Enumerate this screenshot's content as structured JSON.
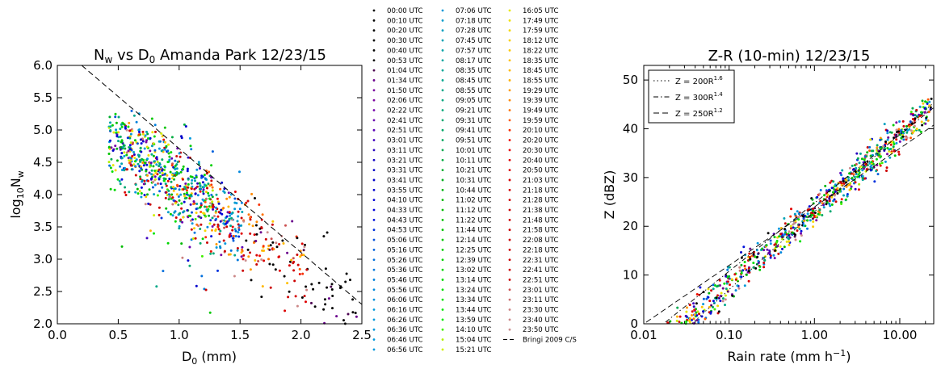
{
  "chart_data": [
    {
      "type": "scatter",
      "title_parts": [
        "N",
        "w",
        " vs D",
        "0",
        " Amanda Park 12/23/15"
      ],
      "xlabel_parts": [
        "D",
        "0",
        " (mm)"
      ],
      "ylabel_parts": [
        "log",
        "10",
        "N",
        "w"
      ],
      "xlim": [
        0.0,
        2.5
      ],
      "ylim": [
        2.0,
        6.0
      ],
      "xticks": [
        "0.0",
        "0.5",
        "1.0",
        "1.5",
        "2.0",
        "2.5"
      ],
      "yticks": [
        "2.0",
        "2.5",
        "3.0",
        "3.5",
        "4.0",
        "4.5",
        "5.0",
        "5.5",
        "6.0"
      ],
      "reference_line": {
        "name": "Bringi 2009 C/S",
        "x": [
          0.2,
          2.5
        ],
        "y": [
          6.0,
          2.3
        ]
      },
      "point_count": 930,
      "grid": false
    },
    {
      "type": "scatter",
      "title": "Z-R (10-min) 12/23/15",
      "xlabel": "Rain rate (mm h",
      "xlabel_sup": "−1",
      "xlabel_end": ")",
      "ylabel": "Z (dBZ)",
      "xscale": "log",
      "xlim": [
        0.01,
        25
      ],
      "ylim": [
        0,
        53
      ],
      "xticks": [
        "0.01",
        "0.10",
        "1.00",
        "10.00"
      ],
      "yticks": [
        "0",
        "10",
        "20",
        "30",
        "40",
        "50"
      ],
      "legend_position": "upper-left",
      "relations": [
        {
          "label": "Z = 200R",
          "sup": "1.6",
          "a": 200,
          "b": 1.6,
          "dash": "1.5,3"
        },
        {
          "label": "Z = 300R",
          "sup": "1.4",
          "a": 300,
          "b": 1.4,
          "dash": "6,3,1.5,3"
        },
        {
          "label": "Z = 250R",
          "sup": "1.2",
          "a": 250,
          "b": 1.2,
          "dash": "7,4"
        }
      ],
      "point_count": 800,
      "grid": false
    }
  ],
  "legend": {
    "entries": [
      {
        "label": "00:00 UTC",
        "color": "#000000"
      },
      {
        "label": "00:10 UTC",
        "color": "#000000"
      },
      {
        "label": "00:20 UTC",
        "color": "#000000"
      },
      {
        "label": "00:30 UTC",
        "color": "#000000"
      },
      {
        "label": "00:40 UTC",
        "color": "#000000"
      },
      {
        "label": "00:53 UTC",
        "color": "#000000"
      },
      {
        "label": "01:04 UTC",
        "color": "#4b0050"
      },
      {
        "label": "01:34 UTC",
        "color": "#6a008c"
      },
      {
        "label": "01:50 UTC",
        "color": "#7a00a0"
      },
      {
        "label": "02:06 UTC",
        "color": "#7a00a0"
      },
      {
        "label": "02:22 UTC",
        "color": "#7300aa"
      },
      {
        "label": "02:41 UTC",
        "color": "#6a00b0"
      },
      {
        "label": "02:51 UTC",
        "color": "#5a00b8"
      },
      {
        "label": "03:01 UTC",
        "color": "#4000c0"
      },
      {
        "label": "03:11 UTC",
        "color": "#2800c0"
      },
      {
        "label": "03:21 UTC",
        "color": "#1000c4"
      },
      {
        "label": "03:31 UTC",
        "color": "#0000c8"
      },
      {
        "label": "03:41 UTC",
        "color": "#0000cc"
      },
      {
        "label": "03:55 UTC",
        "color": "#0000d0"
      },
      {
        "label": "04:10 UTC",
        "color": "#0000d8"
      },
      {
        "label": "04:33 UTC",
        "color": "#0000dd"
      },
      {
        "label": "04:43 UTC",
        "color": "#0010dd"
      },
      {
        "label": "04:53 UTC",
        "color": "#0030dd"
      },
      {
        "label": "05:06 UTC",
        "color": "#0050dd"
      },
      {
        "label": "05:16 UTC",
        "color": "#0060dd"
      },
      {
        "label": "05:26 UTC",
        "color": "#0070dd"
      },
      {
        "label": "05:36 UTC",
        "color": "#0078dd"
      },
      {
        "label": "05:46 UTC",
        "color": "#0080dd"
      },
      {
        "label": "05:56 UTC",
        "color": "#0088dd"
      },
      {
        "label": "06:06 UTC",
        "color": "#0090dd"
      },
      {
        "label": "06:16 UTC",
        "color": "#0098dd"
      },
      {
        "label": "06:26 UTC",
        "color": "#0098dd"
      },
      {
        "label": "06:36 UTC",
        "color": "#0098dd"
      },
      {
        "label": "06:46 UTC",
        "color": "#0098dd"
      },
      {
        "label": "06:56 UTC",
        "color": "#0098dd"
      },
      {
        "label": "07:06 UTC",
        "color": "#0098d8"
      },
      {
        "label": "07:18 UTC",
        "color": "#009ccc"
      },
      {
        "label": "07:28 UTC",
        "color": "#00a0c0"
      },
      {
        "label": "07:45 UTC",
        "color": "#00a2b4"
      },
      {
        "label": "07:57 UTC",
        "color": "#00a4a8"
      },
      {
        "label": "08:17 UTC",
        "color": "#00a6a0"
      },
      {
        "label": "08:35 UTC",
        "color": "#00a898"
      },
      {
        "label": "08:45 UTC",
        "color": "#00a890"
      },
      {
        "label": "08:55 UTC",
        "color": "#00a888"
      },
      {
        "label": "09:05 UTC",
        "color": "#00a880"
      },
      {
        "label": "09:21 UTC",
        "color": "#00a878"
      },
      {
        "label": "09:31 UTC",
        "color": "#00a870"
      },
      {
        "label": "09:41 UTC",
        "color": "#00a868"
      },
      {
        "label": "09:51 UTC",
        "color": "#00a860"
      },
      {
        "label": "10:01 UTC",
        "color": "#00aa50"
      },
      {
        "label": "10:11 UTC",
        "color": "#00ac40"
      },
      {
        "label": "10:21 UTC",
        "color": "#00ae30"
      },
      {
        "label": "10:31 UTC",
        "color": "#00b020"
      },
      {
        "label": "10:44 UTC",
        "color": "#00b410"
      },
      {
        "label": "11:02 UTC",
        "color": "#00b800"
      },
      {
        "label": "11:12 UTC",
        "color": "#00bc00"
      },
      {
        "label": "11:22 UTC",
        "color": "#00c000"
      },
      {
        "label": "11:44 UTC",
        "color": "#00c400"
      },
      {
        "label": "12:14 UTC",
        "color": "#00c800"
      },
      {
        "label": "12:25 UTC",
        "color": "#00cc00"
      },
      {
        "label": "12:39 UTC",
        "color": "#00d000"
      },
      {
        "label": "13:02 UTC",
        "color": "#00d400"
      },
      {
        "label": "13:14 UTC",
        "color": "#00d800"
      },
      {
        "label": "13:24 UTC",
        "color": "#00dc00"
      },
      {
        "label": "13:34 UTC",
        "color": "#00e000"
      },
      {
        "label": "13:44 UTC",
        "color": "#00e400"
      },
      {
        "label": "13:59 UTC",
        "color": "#00e800"
      },
      {
        "label": "14:10 UTC",
        "color": "#40f000"
      },
      {
        "label": "15:04 UTC",
        "color": "#b0f000"
      },
      {
        "label": "15:21 UTC",
        "color": "#d0f000"
      },
      {
        "label": "16:05 UTC",
        "color": "#e8e800"
      },
      {
        "label": "17:49 UTC",
        "color": "#f0e000"
      },
      {
        "label": "17:59 UTC",
        "color": "#f4d800"
      },
      {
        "label": "18:12 UTC",
        "color": "#f8d000"
      },
      {
        "label": "18:22 UTC",
        "color": "#fcc800"
      },
      {
        "label": "18:35 UTC",
        "color": "#ffc000"
      },
      {
        "label": "18:45 UTC",
        "color": "#ffb800"
      },
      {
        "label": "18:55 UTC",
        "color": "#ffb000"
      },
      {
        "label": "19:29 UTC",
        "color": "#ff9a00"
      },
      {
        "label": "19:39 UTC",
        "color": "#ff8800"
      },
      {
        "label": "19:49 UTC",
        "color": "#ff7000"
      },
      {
        "label": "19:59 UTC",
        "color": "#ff5800"
      },
      {
        "label": "20:10 UTC",
        "color": "#f83000"
      },
      {
        "label": "20:20 UTC",
        "color": "#f01000"
      },
      {
        "label": "20:30 UTC",
        "color": "#e80000"
      },
      {
        "label": "20:40 UTC",
        "color": "#e00000"
      },
      {
        "label": "20:50 UTC",
        "color": "#dc0000"
      },
      {
        "label": "21:03 UTC",
        "color": "#d80000"
      },
      {
        "label": "21:18 UTC",
        "color": "#d40000"
      },
      {
        "label": "21:28 UTC",
        "color": "#d00000"
      },
      {
        "label": "21:38 UTC",
        "color": "#cc0000"
      },
      {
        "label": "21:48 UTC",
        "color": "#cc0000"
      },
      {
        "label": "21:58 UTC",
        "color": "#cc0000"
      },
      {
        "label": "22:08 UTC",
        "color": "#cc0000"
      },
      {
        "label": "22:18 UTC",
        "color": "#cc0000"
      },
      {
        "label": "22:31 UTC",
        "color": "#cc0000"
      },
      {
        "label": "22:41 UTC",
        "color": "#cc0000"
      },
      {
        "label": "22:51 UTC",
        "color": "#cc1010"
      },
      {
        "label": "23:01 UTC",
        "color": "#cc5050"
      },
      {
        "label": "23:11 UTC",
        "color": "#cc7070"
      },
      {
        "label": "23:30 UTC",
        "color": "#cc8080"
      },
      {
        "label": "23:40 UTC",
        "color": "#cc8888"
      },
      {
        "label": "23:50 UTC",
        "color": "#cc9090"
      }
    ],
    "reference_label": "Bringi 2009 C/S"
  }
}
